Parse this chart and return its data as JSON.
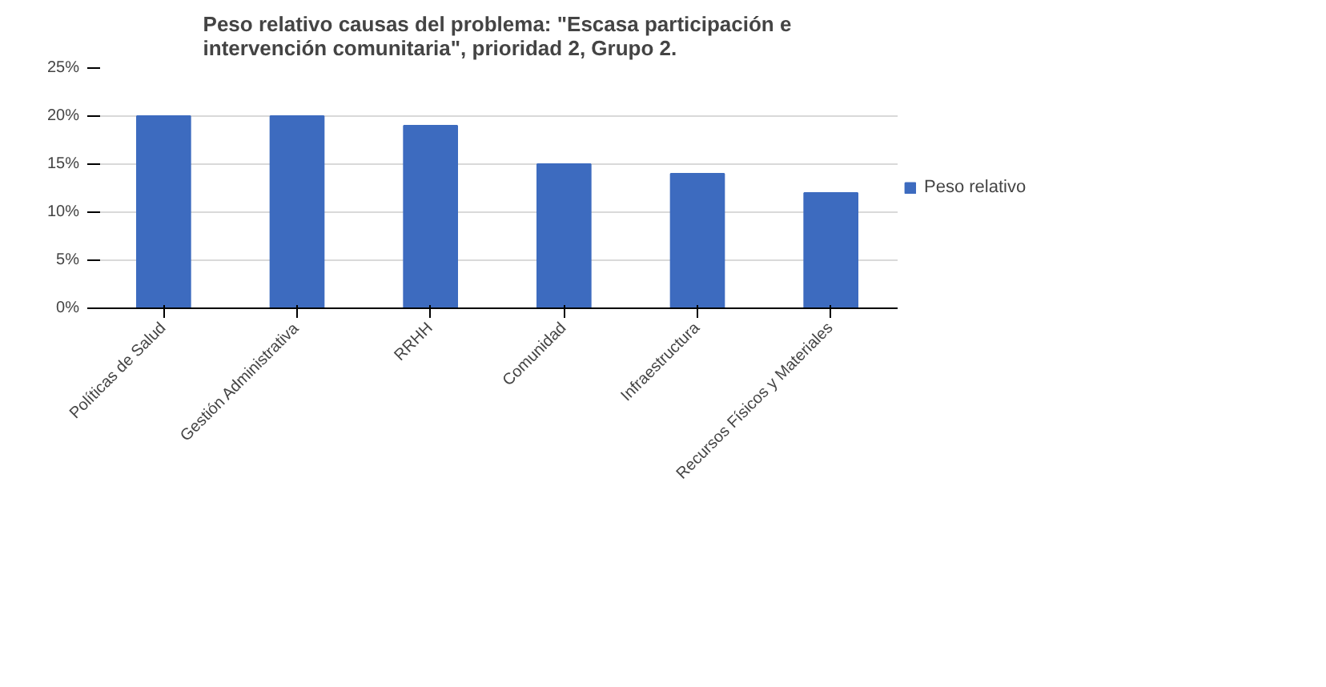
{
  "chart_data": {
    "type": "bar",
    "title": "Peso relativo causas del problema: \"Escasa participación e\nintervención comunitaria\", prioridad 2, Grupo 2.",
    "categories": [
      "Políticas de Salud",
      "Gestión Administrativa",
      "RRHH",
      "Comunidad",
      "Infraestructura",
      "Recursos Físicos y Materiales"
    ],
    "series": [
      {
        "name": "Peso relativo",
        "color": "#3d6bbf",
        "values": [
          20,
          20,
          19,
          15,
          14,
          12
        ]
      }
    ],
    "ylim": [
      0,
      25
    ],
    "yticks": [
      {
        "value": 0,
        "label": "0%"
      },
      {
        "value": 5,
        "label": "5%"
      },
      {
        "value": 10,
        "label": "10%"
      },
      {
        "value": 15,
        "label": "15%"
      },
      {
        "value": 20,
        "label": "20%"
      },
      {
        "value": 25,
        "label": "25%"
      }
    ],
    "grid": "y",
    "legend": "right"
  }
}
